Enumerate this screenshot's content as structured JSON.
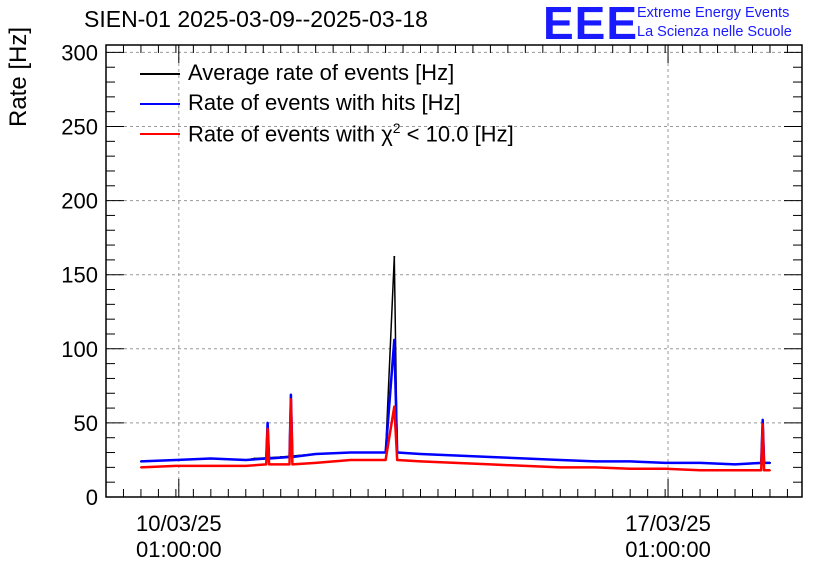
{
  "title": "SIEN-01 2025-03-09--2025-03-18",
  "logo": {
    "mark": "EEE",
    "line1": "Extreme Energy Events",
    "line2": "La Scienza nelle Scuole"
  },
  "legend_entries": [
    {
      "label": "Average rate of events [Hz]",
      "color": "#000000"
    },
    {
      "label": "Rate of events with hits [Hz]",
      "color": "#0000ff"
    },
    {
      "label_pre": "Rate of events with χ",
      "label_sup": "2",
      "label_post": " < 10.0 [Hz]",
      "color": "#ff0000"
    }
  ],
  "chart_data": {
    "type": "line",
    "title": "SIEN-01 2025-03-09--2025-03-18",
    "ylabel": "Rate [Hz]",
    "xlabel": "",
    "ylim": [
      0,
      305
    ],
    "y_ticks": [
      0,
      50,
      100,
      150,
      200,
      250,
      300
    ],
    "x_ticks": [
      {
        "date": "2025-03-10",
        "label_line1": "10/03/25",
        "label_line2": "01:00:00"
      },
      {
        "date": "2025-03-17",
        "label_line1": "17/03/25",
        "label_line2": "01:00:00"
      }
    ],
    "xlim_days": [
      "2025-03-09 00:00",
      "2025-03-18 23:00"
    ],
    "grid": true,
    "legend_position": "top-left",
    "series": [
      {
        "name": "Average rate of events [Hz]",
        "color": "#000000",
        "points": [
          [
            "2025-03-09 12:00",
            24
          ],
          [
            "2025-03-10 00:00",
            25
          ],
          [
            "2025-03-10 12:00",
            26
          ],
          [
            "2025-03-11 00:00",
            25
          ],
          [
            "2025-03-11 03:00",
            26
          ],
          [
            "2025-03-11 12:00",
            27
          ],
          [
            "2025-03-12 00:00",
            29
          ],
          [
            "2025-03-12 12:00",
            30
          ],
          [
            "2025-03-13 00:00",
            30
          ],
          [
            "2025-03-13 03:00",
            162
          ],
          [
            "2025-03-13 04:00",
            30
          ],
          [
            "2025-03-13 12:00",
            29
          ],
          [
            "2025-03-14 00:00",
            28
          ],
          [
            "2025-03-14 12:00",
            27
          ],
          [
            "2025-03-15 00:00",
            26
          ],
          [
            "2025-03-15 12:00",
            25
          ],
          [
            "2025-03-16 00:00",
            24
          ],
          [
            "2025-03-16 12:00",
            24
          ],
          [
            "2025-03-17 00:00",
            23
          ],
          [
            "2025-03-17 12:00",
            23
          ],
          [
            "2025-03-18 00:00",
            22
          ],
          [
            "2025-03-18 12:00",
            23
          ]
        ]
      },
      {
        "name": "Rate of events with hits [Hz]",
        "color": "#0000ff",
        "points": [
          [
            "2025-03-09 12:00",
            24
          ],
          [
            "2025-03-10 00:00",
            25
          ],
          [
            "2025-03-10 12:00",
            26
          ],
          [
            "2025-03-11 00:00",
            25
          ],
          [
            "2025-03-11 07:00",
            26
          ],
          [
            "2025-03-11 07:30",
            50
          ],
          [
            "2025-03-11 08:00",
            26
          ],
          [
            "2025-03-11 15:00",
            27
          ],
          [
            "2025-03-11 15:30",
            69
          ],
          [
            "2025-03-11 16:00",
            27
          ],
          [
            "2025-03-12 00:00",
            29
          ],
          [
            "2025-03-12 12:00",
            30
          ],
          [
            "2025-03-13 00:00",
            30
          ],
          [
            "2025-03-13 03:00",
            106
          ],
          [
            "2025-03-13 04:00",
            30
          ],
          [
            "2025-03-13 12:00",
            29
          ],
          [
            "2025-03-14 00:00",
            28
          ],
          [
            "2025-03-14 12:00",
            27
          ],
          [
            "2025-03-15 00:00",
            26
          ],
          [
            "2025-03-15 12:00",
            25
          ],
          [
            "2025-03-16 00:00",
            24
          ],
          [
            "2025-03-16 12:00",
            24
          ],
          [
            "2025-03-17 00:00",
            23
          ],
          [
            "2025-03-17 12:00",
            23
          ],
          [
            "2025-03-18 00:00",
            22
          ],
          [
            "2025-03-18 09:00",
            23
          ],
          [
            "2025-03-18 09:30",
            52
          ],
          [
            "2025-03-18 10:00",
            23
          ],
          [
            "2025-03-18 12:00",
            23
          ]
        ]
      },
      {
        "name": "Rate of events with χ² < 10.0 [Hz]",
        "color": "#ff0000",
        "points": [
          [
            "2025-03-09 12:00",
            20
          ],
          [
            "2025-03-10 00:00",
            21
          ],
          [
            "2025-03-10 12:00",
            21
          ],
          [
            "2025-03-11 00:00",
            21
          ],
          [
            "2025-03-11 07:00",
            22
          ],
          [
            "2025-03-11 07:30",
            46
          ],
          [
            "2025-03-11 08:00",
            22
          ],
          [
            "2025-03-11 15:00",
            22
          ],
          [
            "2025-03-11 15:30",
            66
          ],
          [
            "2025-03-11 16:00",
            22
          ],
          [
            "2025-03-12 00:00",
            23
          ],
          [
            "2025-03-12 12:00",
            25
          ],
          [
            "2025-03-13 00:00",
            25
          ],
          [
            "2025-03-13 03:00",
            61
          ],
          [
            "2025-03-13 04:00",
            25
          ],
          [
            "2025-03-13 12:00",
            24
          ],
          [
            "2025-03-14 00:00",
            23
          ],
          [
            "2025-03-14 12:00",
            22
          ],
          [
            "2025-03-15 00:00",
            21
          ],
          [
            "2025-03-15 12:00",
            20
          ],
          [
            "2025-03-16 00:00",
            20
          ],
          [
            "2025-03-16 12:00",
            19
          ],
          [
            "2025-03-17 00:00",
            19
          ],
          [
            "2025-03-17 12:00",
            18
          ],
          [
            "2025-03-18 00:00",
            18
          ],
          [
            "2025-03-18 09:00",
            18
          ],
          [
            "2025-03-18 09:30",
            49
          ],
          [
            "2025-03-18 10:00",
            18
          ],
          [
            "2025-03-18 12:00",
            18
          ]
        ]
      }
    ]
  }
}
